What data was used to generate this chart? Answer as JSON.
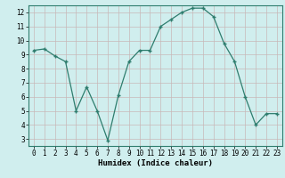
{
  "x": [
    0,
    1,
    2,
    3,
    4,
    5,
    6,
    7,
    8,
    9,
    10,
    11,
    12,
    13,
    14,
    15,
    16,
    17,
    18,
    19,
    20,
    21,
    22,
    23
  ],
  "y": [
    9.3,
    9.4,
    8.9,
    8.5,
    5.0,
    6.7,
    5.0,
    2.9,
    6.1,
    8.5,
    9.3,
    9.3,
    11.0,
    11.5,
    12.0,
    12.3,
    12.3,
    11.7,
    9.8,
    8.5,
    6.0,
    4.0,
    4.8,
    4.8
  ],
  "line_color": "#2e7d6e",
  "marker": "+",
  "marker_color": "#2e7d6e",
  "bg_color": "#d0eeee",
  "grid_color": "#c8b8b8",
  "grid_color_major": "#c8b8b8",
  "xlabel": "Humidex (Indice chaleur)",
  "xlim": [
    -0.5,
    23.5
  ],
  "ylim": [
    2.5,
    12.5
  ],
  "yticks": [
    3,
    4,
    5,
    6,
    7,
    8,
    9,
    10,
    11,
    12
  ],
  "xticks": [
    0,
    1,
    2,
    3,
    4,
    5,
    6,
    7,
    8,
    9,
    10,
    11,
    12,
    13,
    14,
    15,
    16,
    17,
    18,
    19,
    20,
    21,
    22,
    23
  ],
  "tick_fontsize": 5.5,
  "label_fontsize": 6.5,
  "spine_color": "#2e7d6e"
}
